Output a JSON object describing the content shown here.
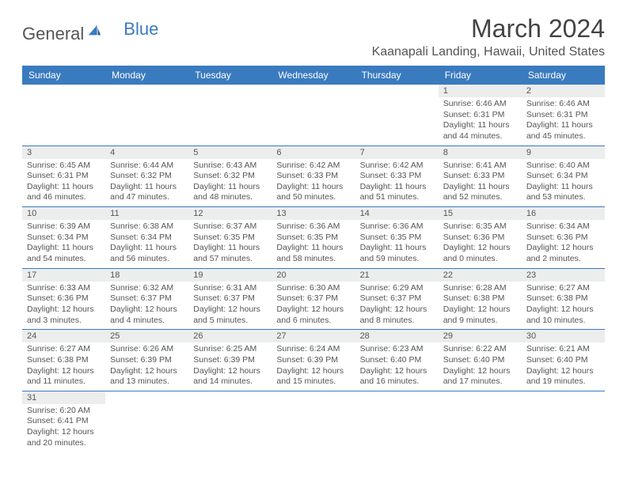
{
  "logo": {
    "word1": "General",
    "word2": "Blue"
  },
  "title": "March 2024",
  "location": "Kaanapali Landing, Hawaii, United States",
  "colors": {
    "header_bg": "#3a7bbf",
    "header_text": "#ffffff",
    "daynum_bg": "#eceded",
    "border": "#3a7bbf",
    "text": "#555555"
  },
  "day_headers": [
    "Sunday",
    "Monday",
    "Tuesday",
    "Wednesday",
    "Thursday",
    "Friday",
    "Saturday"
  ],
  "weeks": [
    [
      null,
      null,
      null,
      null,
      null,
      {
        "n": "1",
        "sunrise": "6:46 AM",
        "sunset": "6:31 PM",
        "daylight": "11 hours and 44 minutes."
      },
      {
        "n": "2",
        "sunrise": "6:46 AM",
        "sunset": "6:31 PM",
        "daylight": "11 hours and 45 minutes."
      }
    ],
    [
      {
        "n": "3",
        "sunrise": "6:45 AM",
        "sunset": "6:31 PM",
        "daylight": "11 hours and 46 minutes."
      },
      {
        "n": "4",
        "sunrise": "6:44 AM",
        "sunset": "6:32 PM",
        "daylight": "11 hours and 47 minutes."
      },
      {
        "n": "5",
        "sunrise": "6:43 AM",
        "sunset": "6:32 PM",
        "daylight": "11 hours and 48 minutes."
      },
      {
        "n": "6",
        "sunrise": "6:42 AM",
        "sunset": "6:33 PM",
        "daylight": "11 hours and 50 minutes."
      },
      {
        "n": "7",
        "sunrise": "6:42 AM",
        "sunset": "6:33 PM",
        "daylight": "11 hours and 51 minutes."
      },
      {
        "n": "8",
        "sunrise": "6:41 AM",
        "sunset": "6:33 PM",
        "daylight": "11 hours and 52 minutes."
      },
      {
        "n": "9",
        "sunrise": "6:40 AM",
        "sunset": "6:34 PM",
        "daylight": "11 hours and 53 minutes."
      }
    ],
    [
      {
        "n": "10",
        "sunrise": "6:39 AM",
        "sunset": "6:34 PM",
        "daylight": "11 hours and 54 minutes."
      },
      {
        "n": "11",
        "sunrise": "6:38 AM",
        "sunset": "6:34 PM",
        "daylight": "11 hours and 56 minutes."
      },
      {
        "n": "12",
        "sunrise": "6:37 AM",
        "sunset": "6:35 PM",
        "daylight": "11 hours and 57 minutes."
      },
      {
        "n": "13",
        "sunrise": "6:36 AM",
        "sunset": "6:35 PM",
        "daylight": "11 hours and 58 minutes."
      },
      {
        "n": "14",
        "sunrise": "6:36 AM",
        "sunset": "6:35 PM",
        "daylight": "11 hours and 59 minutes."
      },
      {
        "n": "15",
        "sunrise": "6:35 AM",
        "sunset": "6:36 PM",
        "daylight": "12 hours and 0 minutes."
      },
      {
        "n": "16",
        "sunrise": "6:34 AM",
        "sunset": "6:36 PM",
        "daylight": "12 hours and 2 minutes."
      }
    ],
    [
      {
        "n": "17",
        "sunrise": "6:33 AM",
        "sunset": "6:36 PM",
        "daylight": "12 hours and 3 minutes."
      },
      {
        "n": "18",
        "sunrise": "6:32 AM",
        "sunset": "6:37 PM",
        "daylight": "12 hours and 4 minutes."
      },
      {
        "n": "19",
        "sunrise": "6:31 AM",
        "sunset": "6:37 PM",
        "daylight": "12 hours and 5 minutes."
      },
      {
        "n": "20",
        "sunrise": "6:30 AM",
        "sunset": "6:37 PM",
        "daylight": "12 hours and 6 minutes."
      },
      {
        "n": "21",
        "sunrise": "6:29 AM",
        "sunset": "6:37 PM",
        "daylight": "12 hours and 8 minutes."
      },
      {
        "n": "22",
        "sunrise": "6:28 AM",
        "sunset": "6:38 PM",
        "daylight": "12 hours and 9 minutes."
      },
      {
        "n": "23",
        "sunrise": "6:27 AM",
        "sunset": "6:38 PM",
        "daylight": "12 hours and 10 minutes."
      }
    ],
    [
      {
        "n": "24",
        "sunrise": "6:27 AM",
        "sunset": "6:38 PM",
        "daylight": "12 hours and 11 minutes."
      },
      {
        "n": "25",
        "sunrise": "6:26 AM",
        "sunset": "6:39 PM",
        "daylight": "12 hours and 13 minutes."
      },
      {
        "n": "26",
        "sunrise": "6:25 AM",
        "sunset": "6:39 PM",
        "daylight": "12 hours and 14 minutes."
      },
      {
        "n": "27",
        "sunrise": "6:24 AM",
        "sunset": "6:39 PM",
        "daylight": "12 hours and 15 minutes."
      },
      {
        "n": "28",
        "sunrise": "6:23 AM",
        "sunset": "6:40 PM",
        "daylight": "12 hours and 16 minutes."
      },
      {
        "n": "29",
        "sunrise": "6:22 AM",
        "sunset": "6:40 PM",
        "daylight": "12 hours and 17 minutes."
      },
      {
        "n": "30",
        "sunrise": "6:21 AM",
        "sunset": "6:40 PM",
        "daylight": "12 hours and 19 minutes."
      }
    ],
    [
      {
        "n": "31",
        "sunrise": "6:20 AM",
        "sunset": "6:41 PM",
        "daylight": "12 hours and 20 minutes."
      },
      null,
      null,
      null,
      null,
      null,
      null
    ]
  ]
}
